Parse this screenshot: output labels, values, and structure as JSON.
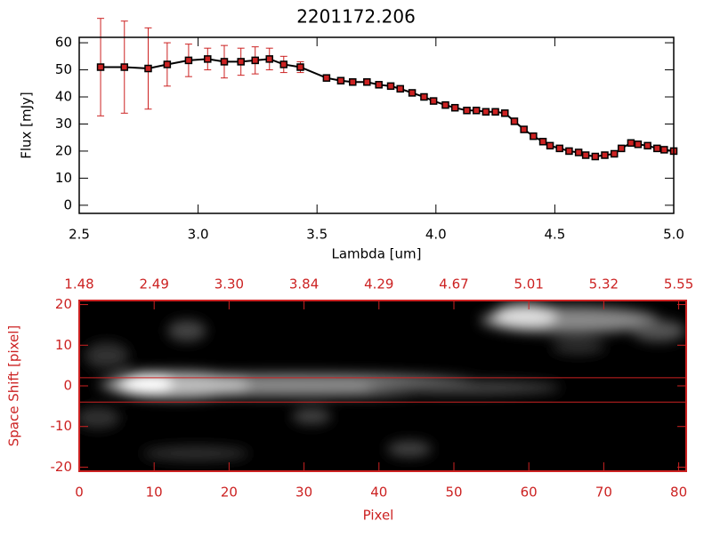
{
  "chart_data": [
    {
      "type": "line",
      "title": "2201172.206",
      "xlabel": "Lambda [um]",
      "ylabel": "Flux [mJy]",
      "x": [
        2.59,
        2.69,
        2.79,
        2.87,
        2.96,
        3.04,
        3.11,
        3.18,
        3.24,
        3.3,
        3.36,
        3.43,
        3.54,
        3.6,
        3.65,
        3.71,
        3.76,
        3.81,
        3.85,
        3.9,
        3.95,
        3.99,
        4.04,
        4.08,
        4.13,
        4.17,
        4.21,
        4.25,
        4.29,
        4.33,
        4.37,
        4.41,
        4.45,
        4.48,
        4.52,
        4.56,
        4.6,
        4.63,
        4.67,
        4.71,
        4.75,
        4.78,
        4.82,
        4.85,
        4.89,
        4.93,
        4.96,
        5.0
      ],
      "series": [
        {
          "color": "#cc2222",
          "values": [
            51,
            51,
            50.5,
            52,
            53.5,
            54,
            53,
            53,
            53.5,
            54,
            52,
            51,
            47,
            46,
            45.5,
            45.5,
            44.5,
            44,
            43,
            41.5,
            40,
            38.5,
            37,
            36,
            35,
            35,
            34.5,
            34.5,
            34,
            31,
            28,
            25.5,
            23.5,
            22,
            21,
            20,
            19.5,
            18.5,
            18,
            18.5,
            19,
            21,
            23,
            22.5,
            22,
            21,
            20.5,
            20
          ],
          "errors": [
            18,
            17,
            15,
            8,
            6,
            4,
            6,
            5,
            5,
            4,
            3,
            2,
            1,
            1,
            1,
            1,
            1,
            1,
            1,
            1,
            1,
            1,
            1,
            1,
            1,
            1,
            1,
            1,
            1,
            1,
            1,
            1,
            1,
            1,
            1,
            1,
            1,
            1,
            1,
            1,
            1,
            1,
            1,
            1,
            1,
            1,
            1,
            1
          ]
        }
      ],
      "xlim": [
        2.5,
        5.0
      ],
      "xticks": [
        2.5,
        {
          "value": 3,
          "label": "3.0"
        },
        3.5,
        {
          "value": 4,
          "label": "4.0"
        },
        4.5,
        {
          "value": 5,
          "label": "5.0"
        }
      ],
      "ylim": [
        -3,
        62
      ],
      "yticks": [
        0,
        10,
        20,
        30,
        40,
        50,
        60
      ]
    },
    {
      "type": "image",
      "xlabel": "Pixel",
      "ylabel": "Space Shift [pixel]",
      "color": "#cc2222",
      "xlim": [
        0,
        81
      ],
      "xticks": [
        0,
        10,
        20,
        30,
        40,
        50,
        60,
        70,
        80
      ],
      "x2ticks": [
        {
          "value": 0,
          "label": "1.48"
        },
        {
          "value": 10,
          "label": "2.49"
        },
        {
          "value": 20,
          "label": "3.30"
        },
        {
          "value": 30,
          "label": "3.84"
        },
        {
          "value": 40,
          "label": "4.29"
        },
        {
          "value": 50,
          "label": "4.67"
        },
        {
          "value": 60,
          "label": "5.01"
        },
        {
          "value": 70,
          "label": "5.32"
        },
        {
          "value": 80,
          "label": "5.55"
        }
      ],
      "ylim": [
        -21,
        21
      ],
      "yticks": [
        -20,
        -10,
        0,
        10,
        20
      ],
      "hlines": [
        2,
        -4
      ]
    }
  ]
}
